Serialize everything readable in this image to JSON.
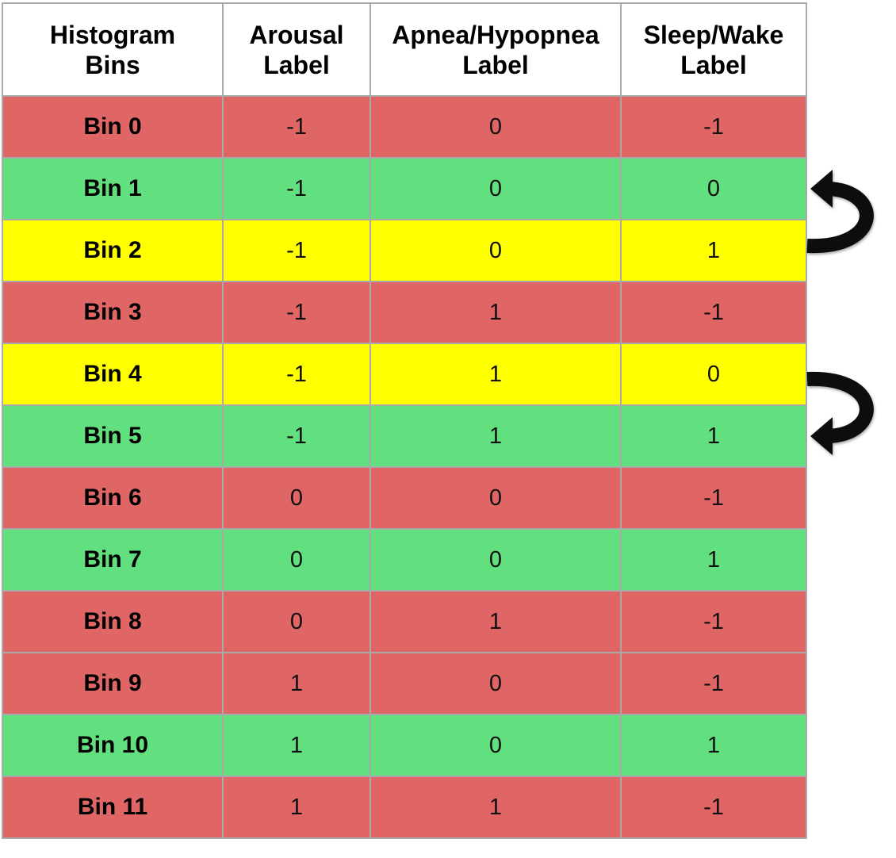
{
  "colors": {
    "red": "#e06666",
    "green": "#62df7e",
    "yellow": "#ffff00",
    "arrow": "#111111"
  },
  "table": {
    "headers": [
      "Histogram\nBins",
      "Arousal\nLabel",
      "Apnea/Hypopnea\nLabel",
      "Sleep/Wake\nLabel"
    ],
    "rows": [
      {
        "bin": "Bin 0",
        "arousal": "-1",
        "apnea": "0",
        "sleep": "-1",
        "color": "red"
      },
      {
        "bin": "Bin 1",
        "arousal": "-1",
        "apnea": "0",
        "sleep": "0",
        "color": "green"
      },
      {
        "bin": "Bin 2",
        "arousal": "-1",
        "apnea": "0",
        "sleep": "1",
        "color": "yellow"
      },
      {
        "bin": "Bin 3",
        "arousal": "-1",
        "apnea": "1",
        "sleep": "-1",
        "color": "red"
      },
      {
        "bin": "Bin 4",
        "arousal": "-1",
        "apnea": "1",
        "sleep": "0",
        "color": "yellow"
      },
      {
        "bin": "Bin 5",
        "arousal": "-1",
        "apnea": "1",
        "sleep": "1",
        "color": "green"
      },
      {
        "bin": "Bin 6",
        "arousal": "0",
        "apnea": "0",
        "sleep": "-1",
        "color": "red"
      },
      {
        "bin": "Bin 7",
        "arousal": "0",
        "apnea": "0",
        "sleep": "1",
        "color": "green"
      },
      {
        "bin": "Bin 8",
        "arousal": "0",
        "apnea": "1",
        "sleep": "-1",
        "color": "red"
      },
      {
        "bin": "Bin 9",
        "arousal": "1",
        "apnea": "0",
        "sleep": "-1",
        "color": "red"
      },
      {
        "bin": "Bin 10",
        "arousal": "1",
        "apnea": "0",
        "sleep": "1",
        "color": "green"
      },
      {
        "bin": "Bin 11",
        "arousal": "1",
        "apnea": "1",
        "sleep": "-1",
        "color": "red"
      }
    ]
  },
  "arrows": [
    {
      "name": "remap-arrow-bin2-to-bin1",
      "from": "Bin 2",
      "to": "Bin 1"
    },
    {
      "name": "remap-arrow-bin4-to-bin5",
      "from": "Bin 4",
      "to": "Bin 5"
    }
  ]
}
